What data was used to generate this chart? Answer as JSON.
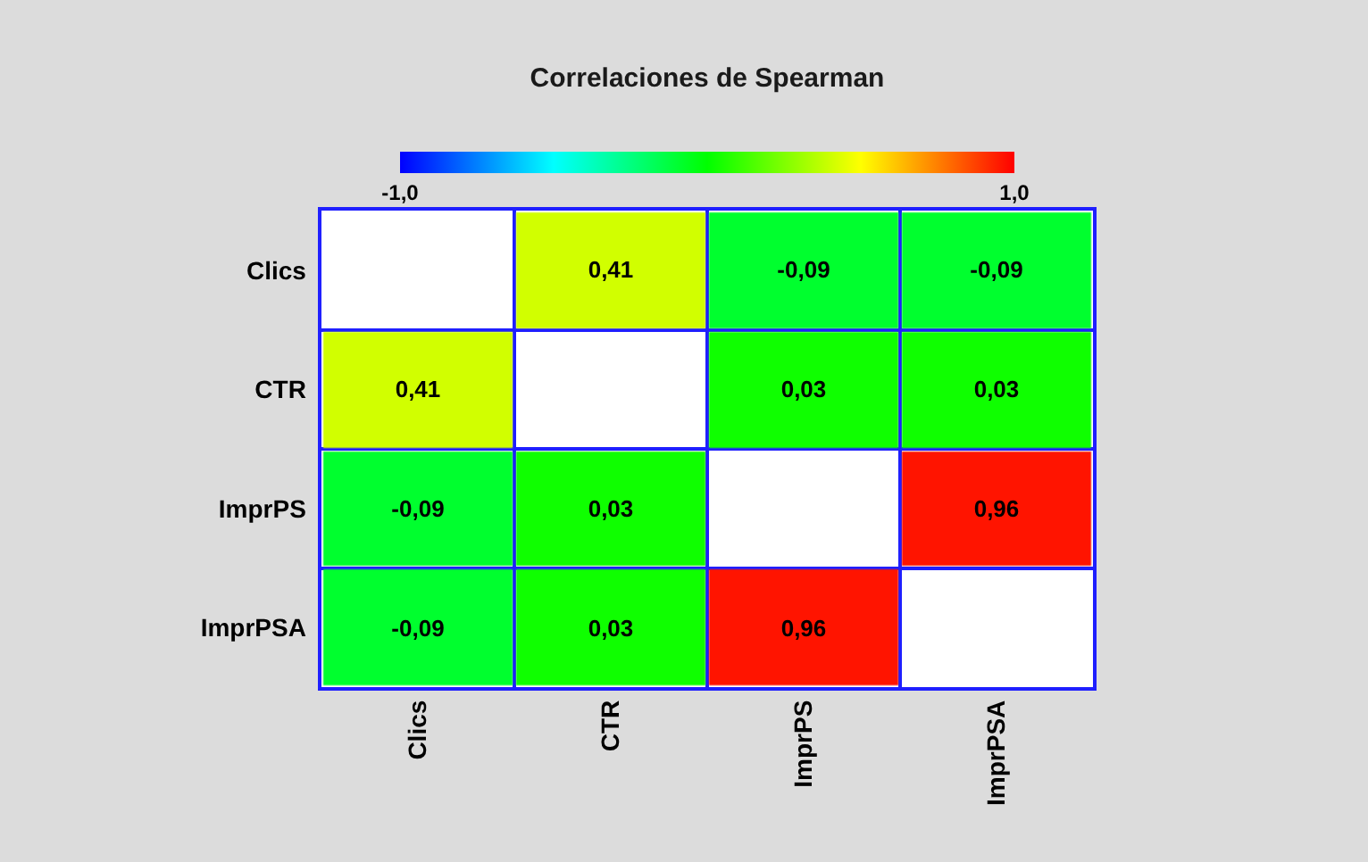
{
  "chart_data": {
    "type": "heatmap",
    "title": "Correlaciones de Spearman",
    "categories": [
      "Clics",
      "CTR",
      "ImprPS",
      "ImprPSA"
    ],
    "y_categories": [
      "Clics",
      "CTR",
      "ImprPS",
      "ImprPSA"
    ],
    "cells": [
      [
        null,
        0.41,
        -0.09,
        -0.09
      ],
      [
        0.41,
        null,
        0.03,
        0.03
      ],
      [
        -0.09,
        0.03,
        null,
        0.96
      ],
      [
        -0.09,
        0.03,
        0.96,
        null
      ]
    ],
    "cell_labels": [
      [
        null,
        "0,41",
        "-0,09",
        "-0,09"
      ],
      [
        "0,41",
        null,
        "0,03",
        "0,03"
      ],
      [
        "-0,09",
        "0,03",
        null,
        "0,96"
      ],
      [
        "-0,09",
        "0,03",
        "0,96",
        null
      ]
    ],
    "clim": [
      -1,
      1
    ],
    "cticks": [
      {
        "value": -1,
        "label": "-1,0"
      },
      {
        "value": 1,
        "label": "1,0"
      }
    ],
    "grid": true
  }
}
